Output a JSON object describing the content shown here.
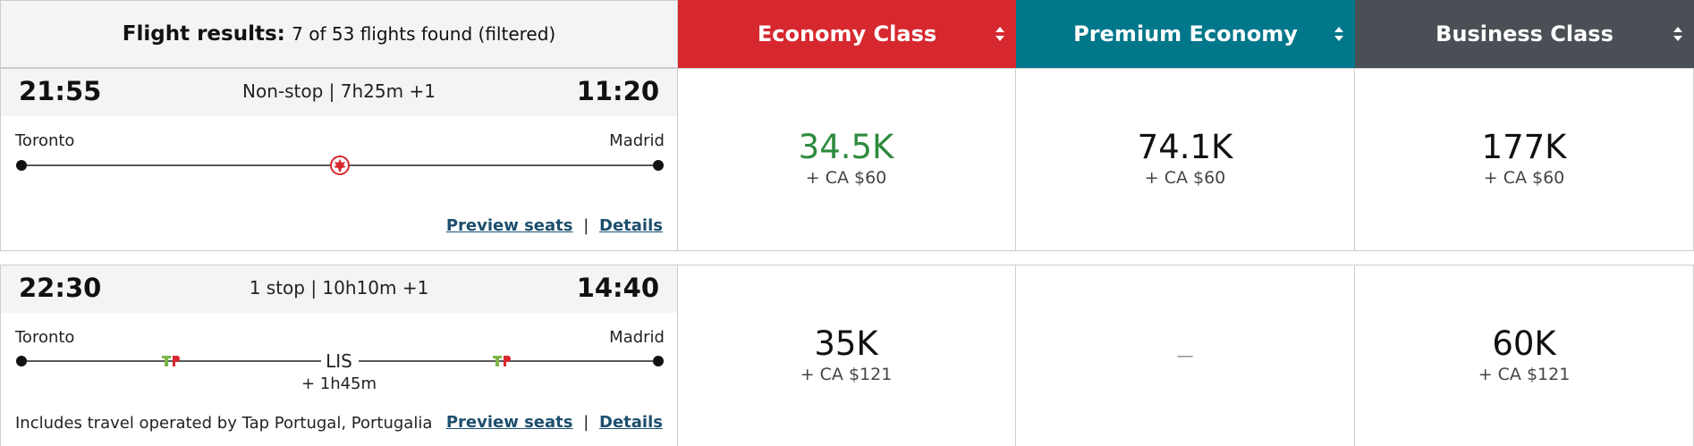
{
  "header": {
    "title": "Flight results:",
    "summary": "7 of 53 flights found (filtered)",
    "columns": [
      "Economy Class",
      "Premium Economy",
      "Business Class"
    ]
  },
  "flights": [
    {
      "depart": "21:55",
      "route": "Non-stop | 7h25m +1",
      "arrive": "11:20",
      "origin": "Toronto",
      "destination": "Madrid",
      "links": [
        "Preview seats",
        "Details"
      ],
      "fares": [
        {
          "points": "34.5K",
          "cash": "+ CA $60"
        },
        {
          "points": "74.1K",
          "cash": "+ CA $60"
        },
        {
          "points": "177K",
          "cash": "+ CA $60"
        }
      ]
    },
    {
      "depart": "22:30",
      "route": "1 stop | 10h10m +1",
      "arrive": "14:40",
      "origin": "Toronto",
      "destination": "Madrid",
      "stopover": {
        "airport": "LIS",
        "layover": "+ 1h45m"
      },
      "note": "Includes travel operated by Tap Portugal, Portugalia",
      "links": [
        "Preview seats",
        "Details"
      ],
      "fares": [
        {
          "points": "35K",
          "cash": "+ CA $121"
        },
        {
          "unavailable": "—"
        },
        {
          "points": "60K",
          "cash": "+ CA $121"
        }
      ]
    }
  ]
}
